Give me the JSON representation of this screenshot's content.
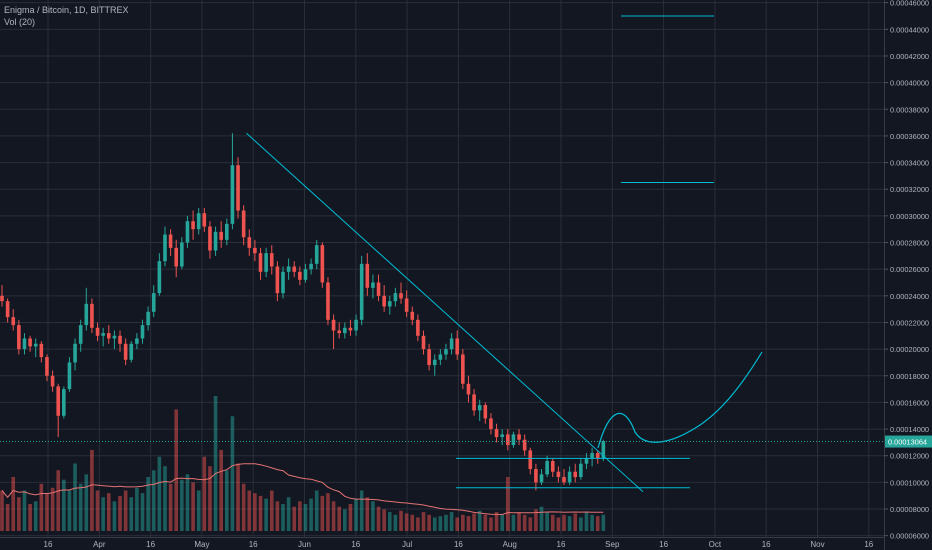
{
  "header": {
    "symbol": "Enigma / Bitcoin, 1D, BITTREX",
    "volume": "Vol (20)"
  },
  "colors": {
    "background": "#131722",
    "grid": "#2a2e39",
    "up": "#26a69a",
    "down": "#ef5350",
    "drawing": "#00bcd4",
    "volume_ma": "#e57373",
    "axis_text": "#b2b5be",
    "price_badge": "#26a69a"
  },
  "chart_data": {
    "type": "candlestick",
    "x_ticks": [
      "16",
      "Apr",
      "16",
      "May",
      "16",
      "Jun",
      "16",
      "Jul",
      "16",
      "Aug",
      "16",
      "Sep",
      "16",
      "Oct",
      "16",
      "Nov",
      "16"
    ],
    "y_ticks": [
      "0.00006000",
      "0.00008000",
      "0.00010000",
      "0.00012000",
      "0.00014000",
      "0.00016000",
      "0.00018000",
      "0.00020000",
      "0.00022000",
      "0.00024000",
      "0.00026000",
      "0.00028000",
      "0.00030000",
      "0.00032000",
      "0.00034000",
      "0.00036000",
      "0.00038000",
      "0.00040000",
      "0.00042000",
      "0.00044000",
      "0.00046000"
    ],
    "ylim": [
      5.9e-05,
      0.000462
    ],
    "last_price": "0.00013064",
    "last_price_value": 0.00013064,
    "candles": [
      [
        0.00024,
        0.000248,
        0.000232,
        0.000236
      ],
      [
        0.000236,
        0.000238,
        0.00022,
        0.000224
      ],
      [
        0.000224,
        0.00023,
        0.000214,
        0.000218
      ],
      [
        0.000218,
        0.000222,
        0.000196,
        0.0002
      ],
      [
        0.0002,
        0.000212,
        0.000196,
        0.000208
      ],
      [
        0.000208,
        0.00021,
        0.000198,
        0.000202
      ],
      [
        0.000202,
        0.000208,
        0.000194,
        0.000204
      ],
      [
        0.000204,
        0.000206,
        0.00019,
        0.000194
      ],
      [
        0.000194,
        0.000196,
        0.000176,
        0.00018
      ],
      [
        0.00018,
        0.000184,
        0.000168,
        0.000172
      ],
      [
        0.000172,
        0.000174,
        0.000134,
        0.00015
      ],
      [
        0.00015,
        0.000172,
        0.000148,
        0.00017
      ],
      [
        0.00017,
        0.000194,
        0.000168,
        0.00019
      ],
      [
        0.00019,
        0.000208,
        0.000184,
        0.000204
      ],
      [
        0.000204,
        0.000222,
        0.000198,
        0.000218
      ],
      [
        0.000218,
        0.000246,
        0.000214,
        0.000234
      ],
      [
        0.000234,
        0.000238,
        0.000212,
        0.000216
      ],
      [
        0.000216,
        0.00022,
        0.000206,
        0.00021
      ],
      [
        0.00021,
        0.000216,
        0.000202,
        0.000212
      ],
      [
        0.000212,
        0.000218,
        0.000204,
        0.000208
      ],
      [
        0.000208,
        0.000214,
        0.0002,
        0.00021
      ],
      [
        0.00021,
        0.000214,
        0.000198,
        0.000204
      ],
      [
        0.000204,
        0.000208,
        0.000188,
        0.000192
      ],
      [
        0.000192,
        0.000206,
        0.00019,
        0.000204
      ],
      [
        0.000204,
        0.000212,
        0.0002,
        0.000208
      ],
      [
        0.000208,
        0.000222,
        0.000204,
        0.000218
      ],
      [
        0.000218,
        0.000232,
        0.000214,
        0.000228
      ],
      [
        0.000228,
        0.000248,
        0.000224,
        0.000242
      ],
      [
        0.000242,
        0.000272,
        0.00024,
        0.000266
      ],
      [
        0.000266,
        0.000292,
        0.000262,
        0.000286
      ],
      [
        0.000286,
        0.00029,
        0.00027,
        0.000276
      ],
      [
        0.000276,
        0.000282,
        0.000254,
        0.000262
      ],
      [
        0.000262,
        0.000284,
        0.00026,
        0.00028
      ],
      [
        0.00028,
        0.0003,
        0.000276,
        0.000296
      ],
      [
        0.000296,
        0.000304,
        0.000282,
        0.00029
      ],
      [
        0.00029,
        0.000306,
        0.000286,
        0.000302
      ],
      [
        0.000302,
        0.000306,
        0.000288,
        0.000292
      ],
      [
        0.000292,
        0.000296,
        0.000268,
        0.000274
      ],
      [
        0.000274,
        0.000292,
        0.00027,
        0.000288
      ],
      [
        0.000288,
        0.000296,
        0.000276,
        0.000282
      ],
      [
        0.000282,
        0.000298,
        0.000278,
        0.000294
      ],
      [
        0.000294,
        0.000362,
        0.00029,
        0.000338
      ],
      [
        0.000338,
        0.000344,
        0.000298,
        0.000304
      ],
      [
        0.000304,
        0.000308,
        0.000278,
        0.000284
      ],
      [
        0.000284,
        0.00029,
        0.00027,
        0.000276
      ],
      [
        0.000276,
        0.000282,
        0.000266,
        0.000272
      ],
      [
        0.000272,
        0.000276,
        0.000252,
        0.000258
      ],
      [
        0.000258,
        0.000276,
        0.000254,
        0.000272
      ],
      [
        0.000272,
        0.000278,
        0.000256,
        0.000262
      ],
      [
        0.000262,
        0.000266,
        0.000236,
        0.000242
      ],
      [
        0.000242,
        0.000262,
        0.000238,
        0.000258
      ],
      [
        0.000258,
        0.000268,
        0.000252,
        0.000262
      ],
      [
        0.000262,
        0.000266,
        0.000254,
        0.000258
      ],
      [
        0.000258,
        0.000262,
        0.000248,
        0.000252
      ],
      [
        0.000252,
        0.000264,
        0.00025,
        0.00026
      ],
      [
        0.00026,
        0.000268,
        0.000256,
        0.000264
      ],
      [
        0.000264,
        0.000282,
        0.00026,
        0.000278
      ],
      [
        0.000278,
        0.00028,
        0.000246,
        0.00025
      ],
      [
        0.00025,
        0.000254,
        0.000218,
        0.000222
      ],
      [
        0.000222,
        0.000226,
        0.0002,
        0.000214
      ],
      [
        0.000214,
        0.00022,
        0.000208,
        0.000212
      ],
      [
        0.000212,
        0.00022,
        0.000208,
        0.000216
      ],
      [
        0.000216,
        0.000222,
        0.00021,
        0.000214
      ],
      [
        0.000214,
        0.000226,
        0.00021,
        0.000222
      ],
      [
        0.000222,
        0.00027,
        0.000218,
        0.000264
      ],
      [
        0.000264,
        0.000272,
        0.00024,
        0.000246
      ],
      [
        0.000246,
        0.000256,
        0.000238,
        0.00025
      ],
      [
        0.00025,
        0.000256,
        0.000236,
        0.00024
      ],
      [
        0.00024,
        0.000248,
        0.000228,
        0.000232
      ],
      [
        0.000232,
        0.00024,
        0.000226,
        0.000236
      ],
      [
        0.000236,
        0.000246,
        0.000232,
        0.000242
      ],
      [
        0.000242,
        0.00025,
        0.000234,
        0.000238
      ],
      [
        0.000238,
        0.000244,
        0.000224,
        0.000228
      ],
      [
        0.000228,
        0.000232,
        0.000218,
        0.000222
      ],
      [
        0.000222,
        0.000226,
        0.000206,
        0.00021
      ],
      [
        0.00021,
        0.000214,
        0.000196,
        0.0002
      ],
      [
        0.0002,
        0.000204,
        0.000184,
        0.000188
      ],
      [
        0.000188,
        0.000196,
        0.00018,
        0.000192
      ],
      [
        0.000192,
        0.0002,
        0.000188,
        0.000196
      ],
      [
        0.000196,
        0.000204,
        0.000192,
        0.0002
      ],
      [
        0.0002,
        0.000212,
        0.000196,
        0.000208
      ],
      [
        0.000208,
        0.000214,
        0.000192,
        0.000196
      ],
      [
        0.000196,
        0.0002,
        0.00017,
        0.000174
      ],
      [
        0.000174,
        0.00018,
        0.00016,
        0.000166
      ],
      [
        0.000166,
        0.00017,
        0.00015,
        0.000154
      ],
      [
        0.000154,
        0.000162,
        0.000146,
        0.000158
      ],
      [
        0.000158,
        0.00016,
        0.000144,
        0.000148
      ],
      [
        0.000148,
        0.000152,
        0.000136,
        0.00014
      ],
      [
        0.00014,
        0.000144,
        0.00013,
        0.000134
      ],
      [
        0.000134,
        0.00014,
        0.000128,
        0.000136
      ],
      [
        0.000136,
        0.00014,
        0.000124,
        0.000128
      ],
      [
        0.000128,
        0.000138,
        0.000126,
        0.000136
      ],
      [
        0.000136,
        0.00014,
        0.000128,
        0.000132
      ],
      [
        0.000132,
        0.000136,
        0.00012,
        0.000124
      ],
      [
        0.000124,
        0.000126,
        0.000106,
        0.00011
      ],
      [
        0.00011,
        0.000114,
        9.4e-05,
        0.0001
      ],
      [
        0.0001,
        0.00011,
        9.8e-05,
        0.000106
      ],
      [
        0.000106,
        0.00012,
        0.000104,
        0.000116
      ],
      [
        0.000116,
        0.000118,
        0.000104,
        0.000108
      ],
      [
        0.000108,
        0.000112,
        0.0001,
        0.000104
      ],
      [
        0.000104,
        0.00011,
        9.8e-05,
        0.0001
      ],
      [
        0.0001,
        0.000112,
        9.8e-05,
        0.000108
      ],
      [
        0.000108,
        0.000114,
        0.0001,
        0.000104
      ],
      [
        0.000104,
        0.000118,
        0.000102,
        0.000114
      ],
      [
        0.000114,
        0.000122,
        0.00011,
        0.000118
      ],
      [
        0.000118,
        0.000126,
        0.000112,
        0.000122
      ],
      [
        0.000122,
        0.000124,
        0.000114,
        0.000118
      ],
      [
        0.000118,
        0.000132,
        0.000116,
        0.000131
      ]
    ],
    "volume": [
      0.3,
      0.2,
      0.4,
      0.25,
      0.3,
      0.2,
      0.22,
      0.35,
      0.28,
      0.32,
      0.45,
      0.38,
      0.3,
      0.5,
      0.35,
      0.42,
      0.6,
      0.3,
      0.25,
      0.28,
      0.22,
      0.26,
      0.3,
      0.25,
      0.32,
      0.28,
      0.4,
      0.45,
      0.55,
      0.48,
      0.35,
      0.9,
      0.38,
      0.42,
      0.36,
      0.3,
      0.55,
      0.48,
      1.0,
      0.6,
      0.45,
      0.85,
      0.5,
      0.35,
      0.3,
      0.28,
      0.26,
      0.24,
      0.3,
      0.22,
      0.2,
      0.25,
      0.18,
      0.22,
      0.2,
      0.24,
      0.3,
      0.26,
      0.28,
      0.22,
      0.18,
      0.16,
      0.2,
      0.24,
      0.3,
      0.25,
      0.22,
      0.18,
      0.16,
      0.14,
      0.12,
      0.15,
      0.13,
      0.12,
      0.1,
      0.14,
      0.12,
      0.1,
      0.11,
      0.12,
      0.14,
      0.1,
      0.12,
      0.11,
      0.13,
      0.15,
      0.12,
      0.1,
      0.14,
      0.12,
      0.4,
      0.12,
      0.14,
      0.12,
      0.1,
      0.16,
      0.18,
      0.14,
      0.12,
      0.1,
      0.12,
      0.11,
      0.13,
      0.1,
      0.14,
      0.12,
      0.11,
      0.12
    ],
    "drawings": {
      "trendline": [
        [
          0.000362,
          9.3e-05
        ]
      ],
      "support_band": [
        0.000118,
        9.6e-05
      ],
      "targets": [
        0.00045,
        0.000325
      ]
    }
  }
}
